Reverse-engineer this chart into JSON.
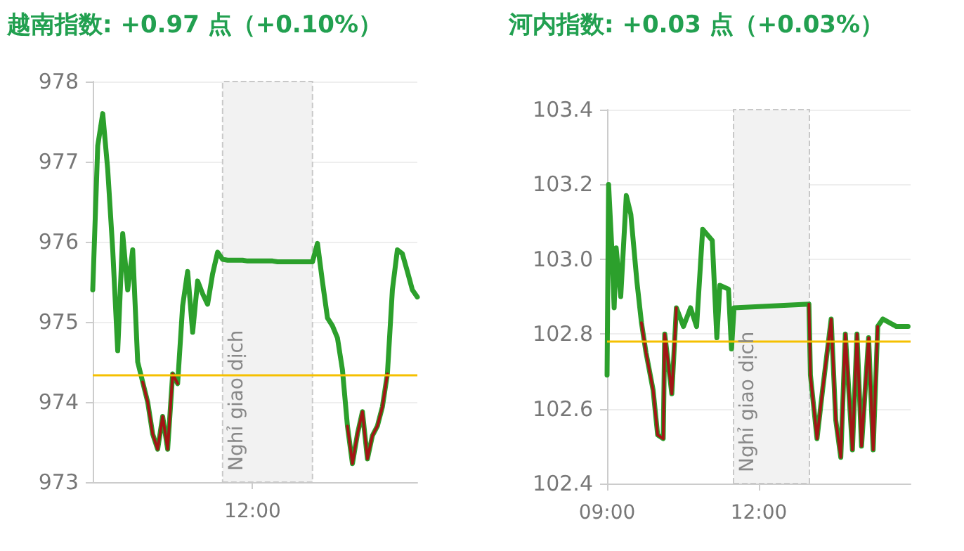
{
  "chart_data": [
    {
      "type": "line",
      "title": "越南指数: +0.97 点（+0.10%）",
      "categories": [
        null,
        null,
        null,
        null,
        null,
        null,
        null,
        null,
        null,
        null,
        null,
        null,
        null,
        null,
        null,
        null,
        null,
        null,
        null,
        null,
        null,
        null,
        null,
        null,
        null,
        null,
        null,
        null,
        null,
        null,
        null,
        null,
        "12:00",
        null,
        null,
        null,
        null,
        null,
        null,
        null,
        null,
        null,
        null,
        null,
        null,
        null,
        null,
        null,
        null,
        null,
        null,
        null,
        null,
        null,
        null,
        null,
        null,
        null,
        null,
        null,
        null,
        null,
        null,
        null,
        null,
        null
      ],
      "series": [
        {
          "color": "#2ca02c",
          "values": [
            975.4,
            977.2,
            977.6,
            976.9,
            975.9,
            974.64,
            976.1,
            975.4,
            975.9,
            974.5,
            974.25,
            974.0,
            973.6,
            973.41,
            973.82,
            973.41,
            974.35,
            974.23,
            975.2,
            975.63,
            974.87,
            975.51,
            975.35,
            975.22,
            975.6,
            975.87,
            975.78,
            975.77,
            975.77,
            975.77,
            975.77,
            975.76,
            975.76,
            975.76,
            975.76,
            975.76,
            975.76,
            975.75,
            975.75,
            975.75,
            975.75,
            975.75,
            975.75,
            975.75,
            975.75,
            975.98,
            975.5,
            975.05,
            974.95,
            974.8,
            974.4,
            973.7,
            973.23,
            973.6,
            973.88,
            973.29,
            973.58,
            973.7,
            973.94,
            974.35,
            975.4,
            975.9,
            975.85,
            975.63,
            975.4,
            975.31
          ]
        },
        {
          "color": "#a31515",
          "values": [
            null,
            null,
            null,
            null,
            null,
            null,
            null,
            null,
            null,
            null,
            974.25,
            974.0,
            973.6,
            973.41,
            973.82,
            973.41,
            974.35,
            974.23,
            null,
            null,
            null,
            null,
            null,
            null,
            null,
            null,
            null,
            null,
            null,
            null,
            null,
            null,
            null,
            null,
            null,
            null,
            null,
            null,
            null,
            null,
            null,
            null,
            null,
            null,
            null,
            null,
            null,
            null,
            null,
            null,
            null,
            973.7,
            973.23,
            973.6,
            973.88,
            973.29,
            973.58,
            973.7,
            973.94,
            974.35,
            null,
            null,
            null,
            null,
            null,
            null
          ]
        }
      ],
      "ylim": [
        973,
        978
      ],
      "yticks": [
        973,
        974,
        975,
        976,
        977,
        978
      ],
      "ref_lines": [
        {
          "axis": "y",
          "value": 974.33,
          "color": "#f5c000"
        }
      ],
      "annotations": [
        "Nghỉ giao dịch"
      ],
      "grid": true,
      "marker": "none",
      "line_style": "solid"
    },
    {
      "type": "line",
      "title": "河内指数: +0.03 点（+0.03%）",
      "x": [
        9,
        9.03,
        9.09,
        9.14,
        9.18,
        9.27,
        9.38,
        9.47,
        9.59,
        9.68,
        9.77,
        9.91,
        10,
        10.11,
        10.14,
        10.28,
        10.37,
        10.51,
        10.65,
        10.77,
        10.89,
        11.08,
        11.17,
        11.23,
        11.4,
        11.46,
        11.51,
        12.99,
        13.02,
        13.15,
        13.26,
        13.43,
        13.52,
        13.62,
        13.71,
        13.85,
        13.94,
        14.03,
        14.17,
        14.26,
        14.35,
        14.45,
        14.72,
        14.95
      ],
      "series": [
        {
          "color": "#2ca02c",
          "values": [
            102.69,
            103.2,
            103.04,
            102.87,
            103.03,
            102.9,
            103.17,
            103.12,
            102.94,
            102.83,
            102.75,
            102.65,
            102.53,
            102.52,
            102.8,
            102.64,
            102.87,
            102.82,
            102.87,
            102.82,
            103.08,
            103.05,
            102.79,
            102.93,
            102.92,
            102.76,
            102.87,
            102.88,
            102.69,
            102.52,
            102.65,
            102.84,
            102.57,
            102.47,
            102.8,
            102.49,
            102.8,
            102.5,
            102.79,
            102.49,
            102.82,
            102.84,
            102.82,
            102.82
          ]
        },
        {
          "color": "#a31515",
          "values": [
            null,
            null,
            null,
            null,
            null,
            null,
            null,
            null,
            null,
            102.83,
            102.75,
            102.65,
            102.53,
            102.52,
            102.8,
            102.64,
            102.87,
            null,
            null,
            null,
            null,
            null,
            null,
            null,
            null,
            null,
            null,
            102.88,
            102.69,
            102.52,
            102.65,
            102.84,
            102.57,
            102.47,
            102.8,
            102.49,
            102.8,
            102.5,
            102.79,
            102.49,
            102.82,
            null,
            null,
            null
          ]
        }
      ],
      "xlim": [
        9,
        15
      ],
      "xticks": [
        {
          "value": 9,
          "label": "09:00"
        },
        {
          "value": 12,
          "label": "12:00"
        }
      ],
      "ylim": [
        102.4,
        103.4
      ],
      "yticks": [
        102.4,
        102.6,
        102.8,
        {
          "value": 103,
          "label": "103.0"
        },
        103.2,
        103.4
      ],
      "ref_lines": [
        {
          "axis": "y",
          "value": 102.785,
          "color": "#f5c000"
        }
      ],
      "bands": [
        {
          "axis": "x",
          "from": 11.5,
          "to": 13,
          "label": "Nghỉ giao dịch",
          "color": "#f2f2f2"
        }
      ],
      "grid": true,
      "marker": "none",
      "line_style": "solid"
    }
  ]
}
